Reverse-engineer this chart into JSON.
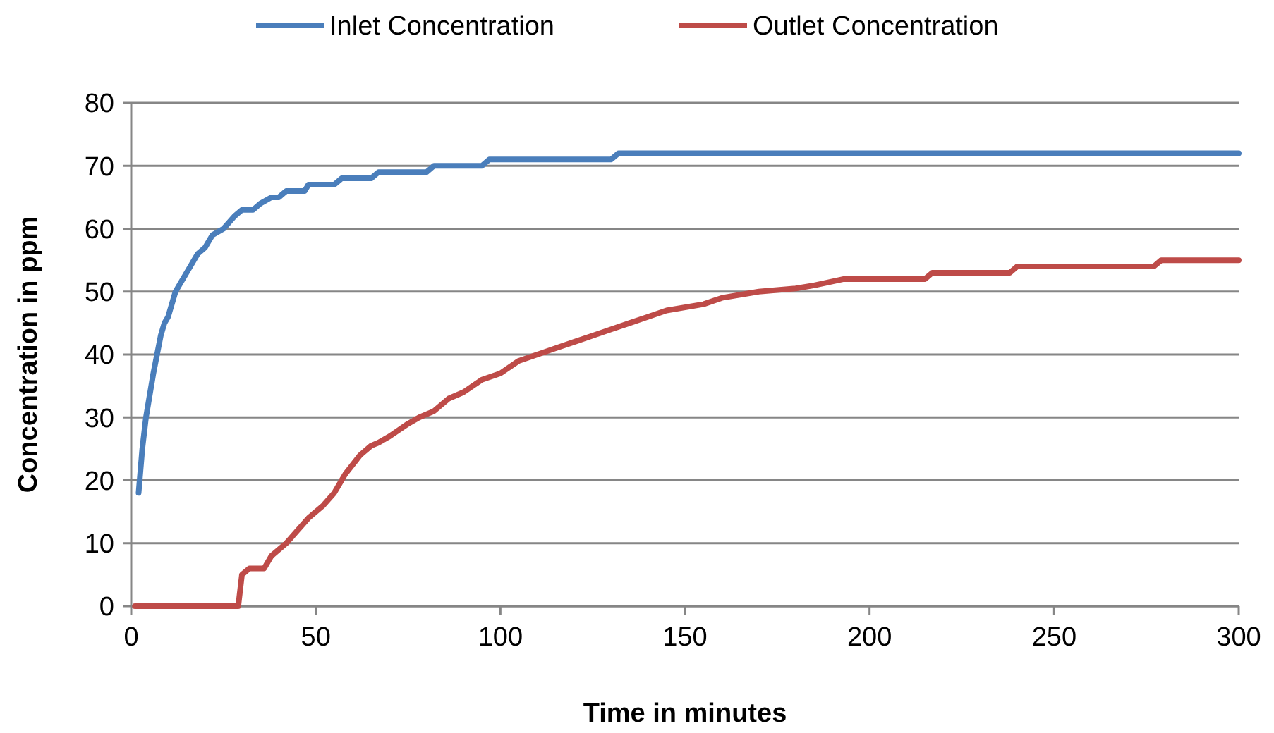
{
  "chart_data": {
    "type": "line",
    "xlabel": "Time in minutes",
    "ylabel": "Concentration in ppm",
    "xlim": [
      0,
      300
    ],
    "xticks": [
      0,
      50,
      100,
      150,
      200,
      250,
      300
    ],
    "ylim": [
      0,
      80
    ],
    "yticks": [
      0,
      10,
      20,
      30,
      40,
      50,
      60,
      70,
      80
    ],
    "grid": "y",
    "legend": "top",
    "marker": "none",
    "line_style": "solid",
    "series": [
      {
        "name": "Inlet Concentration",
        "color": "#4a7ebb",
        "x": [
          2,
          3,
          4,
          6,
          8,
          9,
          10,
          12,
          15,
          18,
          20,
          22,
          25,
          28,
          30,
          33,
          35,
          38,
          40,
          42,
          47,
          48,
          55,
          57,
          65,
          67,
          80,
          82,
          95,
          97,
          130,
          132,
          300
        ],
        "values": [
          18,
          25,
          30,
          37,
          43,
          45,
          46,
          50,
          53,
          56,
          57,
          59,
          60,
          62,
          63,
          63,
          64,
          65,
          65,
          66,
          66,
          67,
          67,
          68,
          68,
          69,
          69,
          70,
          70,
          71,
          71,
          72,
          72
        ]
      },
      {
        "name": "Outlet Concentration",
        "color": "#be4b48",
        "x": [
          1,
          29,
          30,
          32,
          36,
          38,
          42,
          45,
          48,
          52,
          55,
          58,
          62,
          65,
          67,
          70,
          75,
          78,
          82,
          86,
          90,
          95,
          100,
          105,
          110,
          115,
          120,
          125,
          130,
          135,
          140,
          145,
          155,
          160,
          170,
          180,
          185,
          193,
          215,
          217,
          238,
          240,
          277,
          279,
          300
        ],
        "values": [
          0,
          0,
          5,
          6,
          6,
          8,
          10,
          12,
          14,
          16,
          18,
          21,
          24,
          25.5,
          26,
          27,
          29,
          30,
          31,
          33,
          34,
          36,
          37,
          39,
          40,
          41,
          42,
          43,
          44,
          45,
          46,
          47,
          48,
          49,
          50,
          50.5,
          51,
          52,
          52,
          53,
          53,
          54,
          54,
          55,
          55
        ]
      }
    ]
  }
}
